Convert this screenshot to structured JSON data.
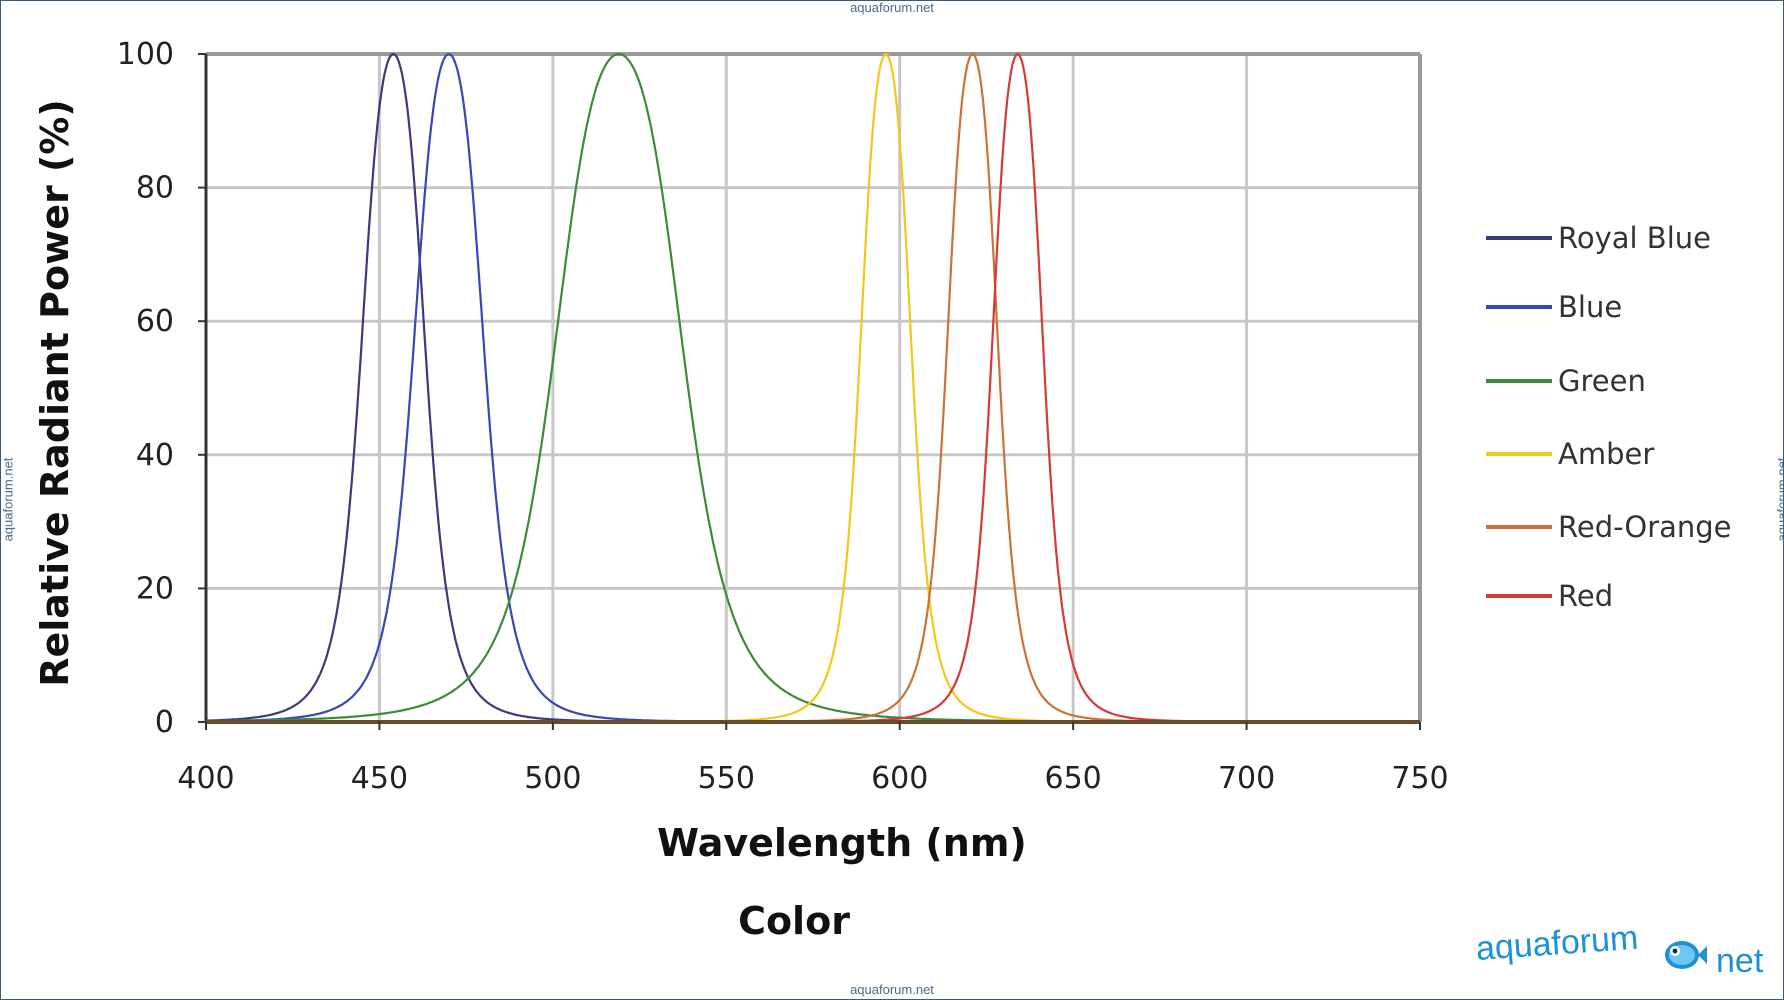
{
  "watermark": {
    "top": "aquaforum.net",
    "bottom": "aquaforum.net",
    "left": "aquaforum.net",
    "right": "aquaforum.net",
    "brand_text": "aquaforum",
    "brand_suffix": "net",
    "brand_icon": "fish-icon"
  },
  "chart_data": {
    "type": "line",
    "xlabel": "Wavelength (nm)",
    "ylabel": "Relative Radiant Power (%)",
    "subtitle": "Color",
    "xlim": [
      400,
      750
    ],
    "ylim": [
      0,
      100
    ],
    "xticks": [
      400,
      450,
      500,
      550,
      600,
      650,
      700,
      750
    ],
    "yticks": [
      0,
      20,
      40,
      60,
      80,
      100
    ],
    "grid": true,
    "legend_position": "right",
    "series": [
      {
        "name": "Royal Blue",
        "color": "#3b3a7a",
        "peak_nm": 454,
        "half_width_nm": 10,
        "x": [
          400,
          430,
          440,
          445,
          450,
          454,
          458,
          463,
          470,
          480,
          490,
          510,
          550,
          600,
          750
        ],
        "y": [
          0,
          6,
          23,
          50,
          88,
          100,
          88,
          62,
          30,
          12,
          6,
          2,
          0.5,
          0,
          0
        ]
      },
      {
        "name": "Blue",
        "color": "#3a46b8",
        "peak_nm": 470,
        "half_width_nm": 11,
        "x": [
          400,
          440,
          450,
          460,
          465,
          470,
          475,
          480,
          490,
          500,
          510,
          530,
          560,
          620,
          750
        ],
        "y": [
          0,
          3,
          11,
          45,
          80,
          100,
          86,
          60,
          29,
          15,
          9,
          4,
          1,
          0,
          0
        ]
      },
      {
        "name": "Green",
        "color": "#3e8a3a",
        "peak_nm": 519,
        "half_width_nm": 20,
        "x": [
          400,
          460,
          480,
          490,
          500,
          510,
          519,
          530,
          540,
          550,
          560,
          570,
          580,
          600,
          640,
          750
        ],
        "y": [
          0,
          1,
          7,
          22,
          55,
          87,
          100,
          88,
          65,
          43,
          27,
          16,
          9,
          3,
          0.5,
          0
        ]
      },
      {
        "name": "Amber",
        "color": "#f2c71a",
        "peak_nm": 596,
        "half_width_nm": 8,
        "x": [
          400,
          550,
          570,
          580,
          585,
          590,
          596,
          602,
          607,
          612,
          620,
          640,
          750
        ],
        "y": [
          0,
          0,
          8,
          22,
          38,
          70,
          100,
          70,
          35,
          15,
          4,
          0.5,
          0
        ]
      },
      {
        "name": "Red-Orange",
        "color": "#c8733a",
        "peak_nm": 621,
        "half_width_nm": 8,
        "x": [
          400,
          580,
          600,
          610,
          615,
          621,
          627,
          632,
          638,
          650,
          670,
          750
        ],
        "y": [
          0,
          1,
          8,
          35,
          68,
          100,
          68,
          35,
          15,
          4,
          0.5,
          0
        ]
      },
      {
        "name": "Red",
        "color": "#d43a3a",
        "peak_nm": 634,
        "half_width_nm": 8,
        "x": [
          400,
          590,
          610,
          620,
          627,
          634,
          640,
          646,
          652,
          660,
          680,
          750
        ],
        "y": [
          0,
          1,
          7,
          25,
          65,
          100,
          70,
          30,
          12,
          4,
          0.5,
          0
        ]
      }
    ]
  }
}
